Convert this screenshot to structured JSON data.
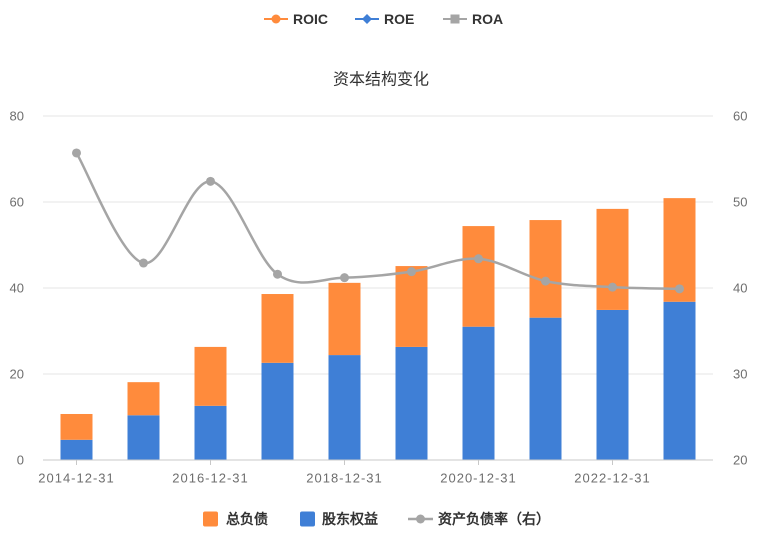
{
  "header_legend": {
    "position": "top-center",
    "items": [
      {
        "label": "ROIC",
        "color": "#ff8b3c",
        "icon": "line-circle-icon"
      },
      {
        "label": "ROE",
        "color": "#3f7fd6",
        "icon": "line-diamond-icon"
      },
      {
        "label": "ROA",
        "color": "#a5a5a5",
        "icon": "line-square-icon"
      }
    ]
  },
  "chart_data": {
    "type": "bar",
    "title": "资本结构变化",
    "stacked": true,
    "categories": [
      "2014-12-31",
      "",
      "2016-12-31",
      "",
      "2018-12-31",
      "",
      "2020-12-31",
      "",
      "2022-12-31",
      ""
    ],
    "series": [
      {
        "name": "股东权益",
        "type": "bar",
        "axis": "left",
        "color": "#3f7fd6",
        "values": [
          4.7,
          10.4,
          12.6,
          22.6,
          24.4,
          26.3,
          31.0,
          33.1,
          34.9,
          36.8
        ]
      },
      {
        "name": "总负债",
        "type": "bar",
        "axis": "left",
        "color": "#ff8b3c",
        "values": [
          6.0,
          7.7,
          13.7,
          16.0,
          16.8,
          18.8,
          23.4,
          22.7,
          23.5,
          24.1
        ]
      },
      {
        "name": "资产负债率（右）",
        "type": "line",
        "axis": "right",
        "smooth": true,
        "marker": "circle",
        "color": "#a5a5a5",
        "values": [
          55.7,
          42.9,
          52.4,
          41.6,
          41.2,
          41.9,
          43.4,
          40.8,
          40.1,
          39.9
        ]
      }
    ],
    "y_left": {
      "ylim": [
        0,
        80
      ],
      "ticks": [
        0,
        20,
        40,
        60,
        80
      ]
    },
    "y_right": {
      "ylim": [
        20,
        60
      ],
      "ticks": [
        20,
        30,
        40,
        50,
        60
      ]
    },
    "grid": true,
    "legend": {
      "position": "bottom-center",
      "icons": [
        "square-icon",
        "square-icon",
        "line-circle-icon"
      ]
    }
  }
}
